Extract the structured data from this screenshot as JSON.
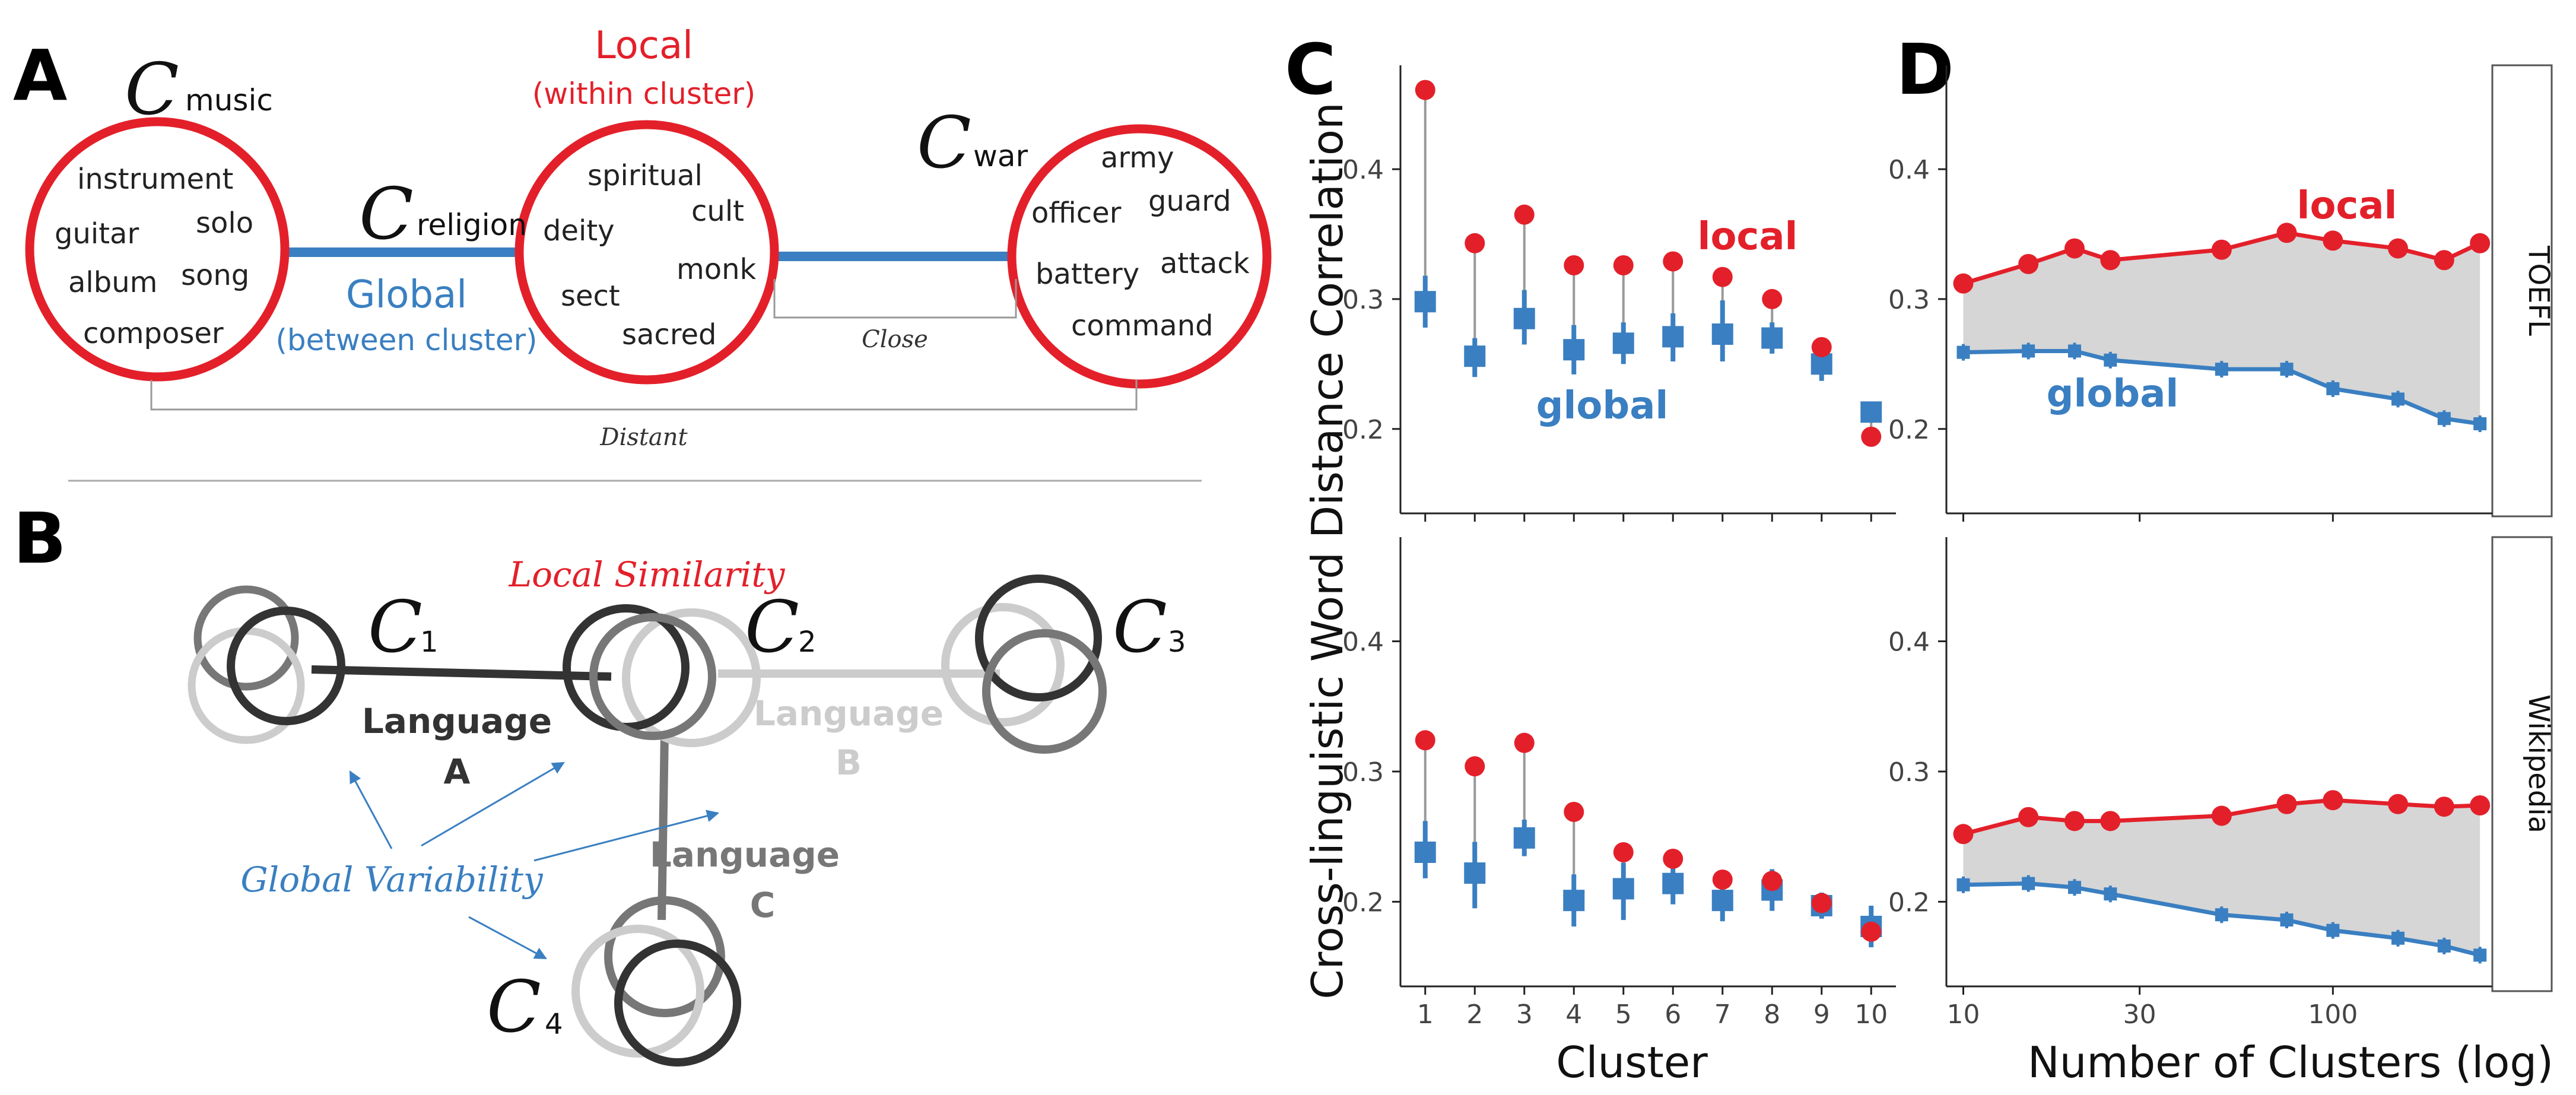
{
  "colors": {
    "red": "#e3202a",
    "blue": "#3a7fc1",
    "gray": "#999999",
    "band": "#d6d6d6",
    "dark": "#333333",
    "mid": "#777777",
    "light": "#cccccc"
  },
  "panel_a": {
    "letter": "A",
    "local_label": "Local",
    "local_sub": "(within cluster)",
    "global_label": "Global",
    "global_sub": "(between cluster)",
    "close_label": "Close",
    "distant_label": "Distant",
    "clusters": [
      {
        "c": "C",
        "sub": "music",
        "words": [
          "instrument",
          "guitar",
          "solo",
          "album",
          "song",
          "composer"
        ]
      },
      {
        "c": "C",
        "sub": "religion",
        "words": [
          "spiritual",
          "deity",
          "cult",
          "sect",
          "monk",
          "sacred"
        ]
      },
      {
        "c": "C",
        "sub": "war",
        "words": [
          "army",
          "officer",
          "guard",
          "battery",
          "attack",
          "command"
        ]
      }
    ]
  },
  "panel_b": {
    "letter": "B",
    "local_similarity": "Local Similarity",
    "global_variability": "Global Variability",
    "c1": "1",
    "c2": "2",
    "c3": "3",
    "c4": "4",
    "c": "C",
    "lang_a": [
      "Language",
      "A"
    ],
    "lang_b": [
      "Language",
      "B"
    ],
    "lang_c": [
      "Language",
      "C"
    ]
  },
  "panel_c": {
    "letter": "C",
    "xlabel": "Cluster"
  },
  "panel_d": {
    "letter": "D",
    "xlabel": "Number of Clusters (log)"
  },
  "shared_ylabel": "Cross-linguistic Word Distance Correlation",
  "facets": [
    "TOEFL",
    "Wikipedia"
  ],
  "series_labels": {
    "local": "local",
    "global": "global"
  },
  "chart_data": [
    {
      "type": "scatter",
      "id": "C-TOEFL",
      "facet": "TOEFL",
      "x": [
        1,
        2,
        3,
        4,
        5,
        6,
        7,
        8,
        9,
        10
      ],
      "xticks": [
        "1",
        "2",
        "3",
        "4",
        "5",
        "6",
        "7",
        "8",
        "9",
        "10"
      ],
      "ylim": [
        0.135,
        0.48
      ],
      "yticks": [
        0.2,
        0.3,
        0.4
      ],
      "series": [
        {
          "name": "local",
          "values": [
            0.461,
            0.343,
            0.365,
            0.326,
            0.326,
            0.329,
            0.317,
            0.3,
            0.263,
            0.194
          ]
        },
        {
          "name": "global",
          "values": [
            0.298,
            0.256,
            0.285,
            0.261,
            0.266,
            0.271,
            0.273,
            0.27,
            0.25,
            0.213
          ],
          "err_low": [
            0.278,
            0.24,
            0.265,
            0.242,
            0.25,
            0.252,
            0.252,
            0.258,
            0.237,
            0.213
          ],
          "err_high": [
            0.318,
            0.27,
            0.307,
            0.28,
            0.282,
            0.289,
            0.299,
            0.282,
            0.262,
            0.213
          ]
        }
      ]
    },
    {
      "type": "scatter",
      "id": "C-Wikipedia",
      "facet": "Wikipedia",
      "x": [
        1,
        2,
        3,
        4,
        5,
        6,
        7,
        8,
        9,
        10
      ],
      "xticks": [
        "1",
        "2",
        "3",
        "4",
        "5",
        "6",
        "7",
        "8",
        "9",
        "10"
      ],
      "ylim": [
        0.135,
        0.48
      ],
      "yticks": [
        0.2,
        0.3,
        0.4
      ],
      "series": [
        {
          "name": "local",
          "values": [
            0.324,
            0.304,
            0.322,
            0.269,
            0.238,
            0.233,
            0.217,
            0.216,
            0.199,
            0.177
          ]
        },
        {
          "name": "global",
          "values": [
            0.238,
            0.222,
            0.249,
            0.201,
            0.21,
            0.214,
            0.201,
            0.209,
            0.197,
            0.181
          ],
          "err_low": [
            0.218,
            0.195,
            0.235,
            0.181,
            0.186,
            0.198,
            0.185,
            0.193,
            0.187,
            0.165
          ],
          "err_high": [
            0.262,
            0.246,
            0.263,
            0.221,
            0.23,
            0.23,
            0.221,
            0.225,
            0.207,
            0.197
          ]
        }
      ]
    },
    {
      "type": "line",
      "id": "D-TOEFL",
      "facet": "TOEFL",
      "x": [
        10,
        15,
        20,
        25,
        50,
        75,
        100,
        150,
        200,
        250
      ],
      "xscale": "log",
      "xlim": [
        9,
        270
      ],
      "xticks": [
        10,
        30,
        100
      ],
      "ylim": [
        0.135,
        0.48
      ],
      "yticks": [
        0.2,
        0.3,
        0.4
      ],
      "series": [
        {
          "name": "local",
          "values": [
            0.312,
            0.327,
            0.339,
            0.33,
            0.338,
            0.351,
            0.345,
            0.339,
            0.33,
            0.343
          ]
        },
        {
          "name": "global",
          "values": [
            0.259,
            0.26,
            0.26,
            0.253,
            0.246,
            0.246,
            0.231,
            0.223,
            0.208,
            0.204
          ]
        }
      ]
    },
    {
      "type": "line",
      "id": "D-Wikipedia",
      "facet": "Wikipedia",
      "x": [
        10,
        15,
        20,
        25,
        50,
        75,
        100,
        150,
        200,
        250
      ],
      "xscale": "log",
      "xlim": [
        9,
        270
      ],
      "xticks": [
        10,
        30,
        100
      ],
      "ylim": [
        0.135,
        0.48
      ],
      "yticks": [
        0.2,
        0.3,
        0.4
      ],
      "series": [
        {
          "name": "local",
          "values": [
            0.252,
            0.265,
            0.262,
            0.262,
            0.266,
            0.275,
            0.278,
            0.275,
            0.273,
            0.274
          ]
        },
        {
          "name": "global",
          "values": [
            0.213,
            0.214,
            0.211,
            0.206,
            0.19,
            0.186,
            0.178,
            0.172,
            0.166,
            0.159
          ]
        }
      ]
    }
  ]
}
